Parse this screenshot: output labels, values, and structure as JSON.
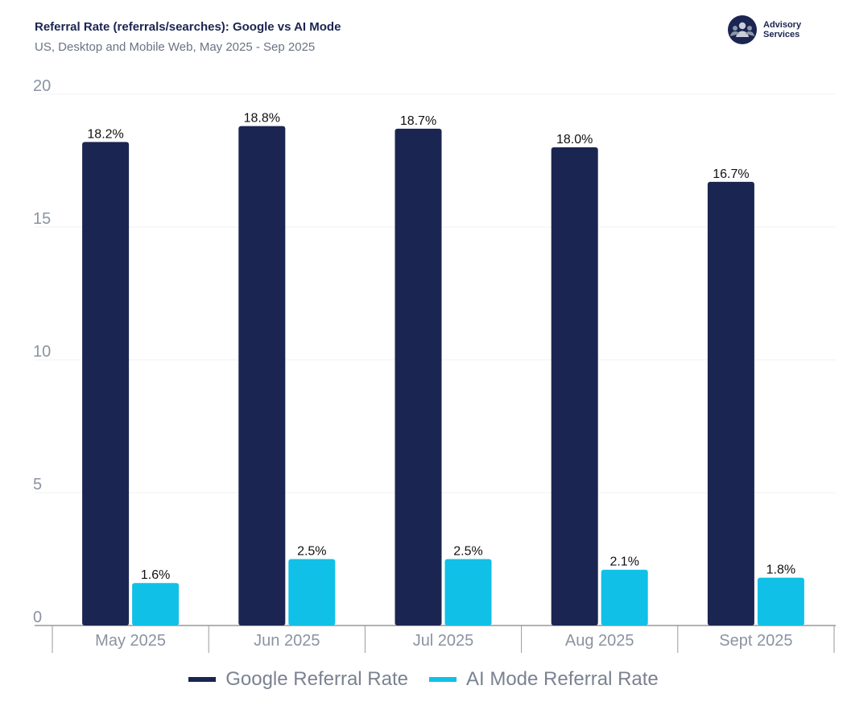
{
  "header": {
    "title": "Referral Rate (referrals/searches):  Google vs AI Mode",
    "subtitle": "US, Desktop and Mobile Web, May 2025 - Sep 2025"
  },
  "logo": {
    "line1": "Advisory",
    "line2": "Services",
    "icon": "people-group-icon"
  },
  "colors": {
    "google": "#1b2551",
    "ai": "#11c0e6",
    "grid": "#f0f0f0",
    "axis": "#9a9a9a",
    "text": "#111111",
    "tick": "#8b93a1"
  },
  "chart_data": {
    "type": "bar",
    "title": "Referral Rate (referrals/searches):  Google vs AI Mode",
    "categories": [
      "May 2025",
      "Jun 2025",
      "Jul 2025",
      "Aug 2025",
      "Sept 2025"
    ],
    "series": [
      {
        "name": "Google Referral Rate",
        "values": [
          18.2,
          18.8,
          18.7,
          18.0,
          16.7
        ],
        "labels": [
          "18.2%",
          "18.8%",
          "18.7%",
          "18.0%",
          "16.7%"
        ]
      },
      {
        "name": "AI Mode Referral Rate",
        "values": [
          1.6,
          2.5,
          2.5,
          2.1,
          1.8
        ],
        "labels": [
          "1.6%",
          "2.5%",
          "2.5%",
          "2.1%",
          "1.8%"
        ]
      }
    ],
    "yticks": [
      0,
      5,
      10,
      15,
      20
    ],
    "ylim": [
      0,
      20
    ],
    "xlabel": "",
    "ylabel": "",
    "grid": true,
    "legend": "bottom-center"
  }
}
